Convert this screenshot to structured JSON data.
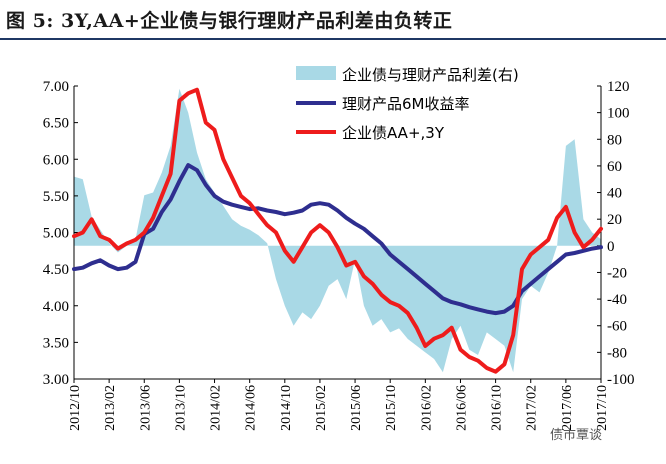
{
  "title": "图 5:  3Y,AA+企业债与银行理财产品利差由负转正",
  "watermark": "债市覃谈",
  "colors": {
    "spread": "#a9d9e6",
    "wmp": "#2e2e8f",
    "bond": "#ee1c1c"
  },
  "chart_data": {
    "type": "line",
    "left_axis": {
      "ylim": [
        3.0,
        7.0
      ],
      "ticks": [
        "7.00",
        "6.50",
        "6.00",
        "5.50",
        "5.00",
        "4.50",
        "4.00",
        "3.50",
        "3.00"
      ]
    },
    "right_axis": {
      "ylim": [
        -100,
        120
      ],
      "ticks": [
        "120",
        "100",
        "80",
        "60",
        "40",
        "20",
        "0",
        "-20",
        "-40",
        "-60",
        "-80",
        "-100"
      ]
    },
    "x_ticks": [
      "2012/10",
      "2013/02",
      "2013/06",
      "2013/10",
      "2014/02",
      "2014/06",
      "2014/10",
      "2015/02",
      "2015/06",
      "2015/10",
      "2016/02",
      "2016/06",
      "2016/10",
      "2017/02",
      "2017/06",
      "2017/10"
    ],
    "x_range": [
      "2012/10",
      "2017/10"
    ],
    "grid": false,
    "legend_position": "top-right",
    "series": [
      {
        "name": "企业债与理财产品利差(右)",
        "kind": "area",
        "axis": "right",
        "x": [
          "2012/10",
          "2012/11",
          "2012/12",
          "2013/01",
          "2013/02",
          "2013/03",
          "2013/04",
          "2013/05",
          "2013/06",
          "2013/07",
          "2013/08",
          "2013/09",
          "2013/10",
          "2013/11",
          "2013/12",
          "2014/01",
          "2014/02",
          "2014/03",
          "2014/04",
          "2014/05",
          "2014/06",
          "2014/07",
          "2014/08",
          "2014/09",
          "2014/10",
          "2014/11",
          "2014/12",
          "2015/01",
          "2015/02",
          "2015/03",
          "2015/04",
          "2015/05",
          "2015/06",
          "2015/07",
          "2015/08",
          "2015/09",
          "2015/10",
          "2015/11",
          "2015/12",
          "2016/01",
          "2016/02",
          "2016/03",
          "2016/04",
          "2016/05",
          "2016/06",
          "2016/07",
          "2016/08",
          "2016/09",
          "2016/10",
          "2016/11",
          "2016/12",
          "2017/01",
          "2017/02",
          "2017/03",
          "2017/04",
          "2017/05",
          "2017/06",
          "2017/07",
          "2017/08",
          "2017/09",
          "2017/10"
        ],
        "values": [
          52,
          50,
          22,
          12,
          2,
          -5,
          0,
          5,
          38,
          40,
          55,
          75,
          118,
          100,
          70,
          50,
          40,
          30,
          20,
          15,
          12,
          8,
          2,
          -25,
          -45,
          -60,
          -50,
          -55,
          -45,
          -30,
          -25,
          -40,
          -10,
          -45,
          -60,
          -55,
          -65,
          -62,
          -70,
          -75,
          -80,
          -85,
          -95,
          -70,
          -60,
          -78,
          -82,
          -65,
          -70,
          -75,
          -95,
          -40,
          -30,
          -35,
          -20,
          0,
          75,
          80,
          20,
          10,
          5
        ]
      },
      {
        "name": "理财产品6M收益率",
        "kind": "line",
        "axis": "left",
        "x": [
          "2012/10",
          "2012/11",
          "2012/12",
          "2013/01",
          "2013/02",
          "2013/03",
          "2013/04",
          "2013/05",
          "2013/06",
          "2013/07",
          "2013/08",
          "2013/09",
          "2013/10",
          "2013/11",
          "2013/12",
          "2014/01",
          "2014/02",
          "2014/03",
          "2014/04",
          "2014/05",
          "2014/06",
          "2014/07",
          "2014/08",
          "2014/09",
          "2014/10",
          "2014/11",
          "2014/12",
          "2015/01",
          "2015/02",
          "2015/03",
          "2015/04",
          "2015/05",
          "2015/06",
          "2015/07",
          "2015/08",
          "2015/09",
          "2015/10",
          "2015/11",
          "2015/12",
          "2016/01",
          "2016/02",
          "2016/03",
          "2016/04",
          "2016/05",
          "2016/06",
          "2016/07",
          "2016/08",
          "2016/09",
          "2016/10",
          "2016/11",
          "2016/12",
          "2017/01",
          "2017/02",
          "2017/03",
          "2017/04",
          "2017/05",
          "2017/06",
          "2017/07",
          "2017/08",
          "2017/09",
          "2017/10"
        ],
        "values": [
          4.5,
          4.52,
          4.58,
          4.62,
          4.55,
          4.5,
          4.52,
          4.6,
          4.98,
          5.05,
          5.28,
          5.45,
          5.7,
          5.92,
          5.85,
          5.65,
          5.5,
          5.42,
          5.38,
          5.35,
          5.32,
          5.33,
          5.3,
          5.28,
          5.25,
          5.27,
          5.3,
          5.38,
          5.4,
          5.38,
          5.3,
          5.2,
          5.12,
          5.05,
          4.95,
          4.85,
          4.7,
          4.6,
          4.5,
          4.4,
          4.3,
          4.2,
          4.1,
          4.05,
          4.02,
          3.98,
          3.95,
          3.92,
          3.9,
          3.92,
          4.0,
          4.2,
          4.3,
          4.4,
          4.5,
          4.6,
          4.7,
          4.72,
          4.75,
          4.78,
          4.8
        ]
      },
      {
        "name": "企业债AA+,3Y",
        "kind": "line",
        "axis": "left",
        "x": [
          "2012/10",
          "2012/11",
          "2012/12",
          "2013/01",
          "2013/02",
          "2013/03",
          "2013/04",
          "2013/05",
          "2013/06",
          "2013/07",
          "2013/08",
          "2013/09",
          "2013/10",
          "2013/11",
          "2013/12",
          "2014/01",
          "2014/02",
          "2014/03",
          "2014/04",
          "2014/05",
          "2014/06",
          "2014/07",
          "2014/08",
          "2014/09",
          "2014/10",
          "2014/11",
          "2014/12",
          "2015/01",
          "2015/02",
          "2015/03",
          "2015/04",
          "2015/05",
          "2015/06",
          "2015/07",
          "2015/08",
          "2015/09",
          "2015/10",
          "2015/11",
          "2015/12",
          "2016/01",
          "2016/02",
          "2016/03",
          "2016/04",
          "2016/05",
          "2016/06",
          "2016/07",
          "2016/08",
          "2016/09",
          "2016/10",
          "2016/11",
          "2016/12",
          "2017/01",
          "2017/02",
          "2017/03",
          "2017/04",
          "2017/05",
          "2017/06",
          "2017/07",
          "2017/08",
          "2017/09",
          "2017/10"
        ],
        "values": [
          4.95,
          5.0,
          5.18,
          4.95,
          4.9,
          4.78,
          4.85,
          4.9,
          5.0,
          5.2,
          5.5,
          5.8,
          6.8,
          6.9,
          6.95,
          6.5,
          6.4,
          6.0,
          5.75,
          5.5,
          5.4,
          5.25,
          5.1,
          5.0,
          4.75,
          4.6,
          4.8,
          5.0,
          5.1,
          5.0,
          4.8,
          4.55,
          4.6,
          4.4,
          4.3,
          4.15,
          4.05,
          4.0,
          3.9,
          3.7,
          3.45,
          3.55,
          3.6,
          3.7,
          3.4,
          3.3,
          3.25,
          3.15,
          3.1,
          3.2,
          3.6,
          4.5,
          4.7,
          4.8,
          4.9,
          5.2,
          5.35,
          5.0,
          4.8,
          4.9,
          5.05
        ]
      }
    ]
  }
}
